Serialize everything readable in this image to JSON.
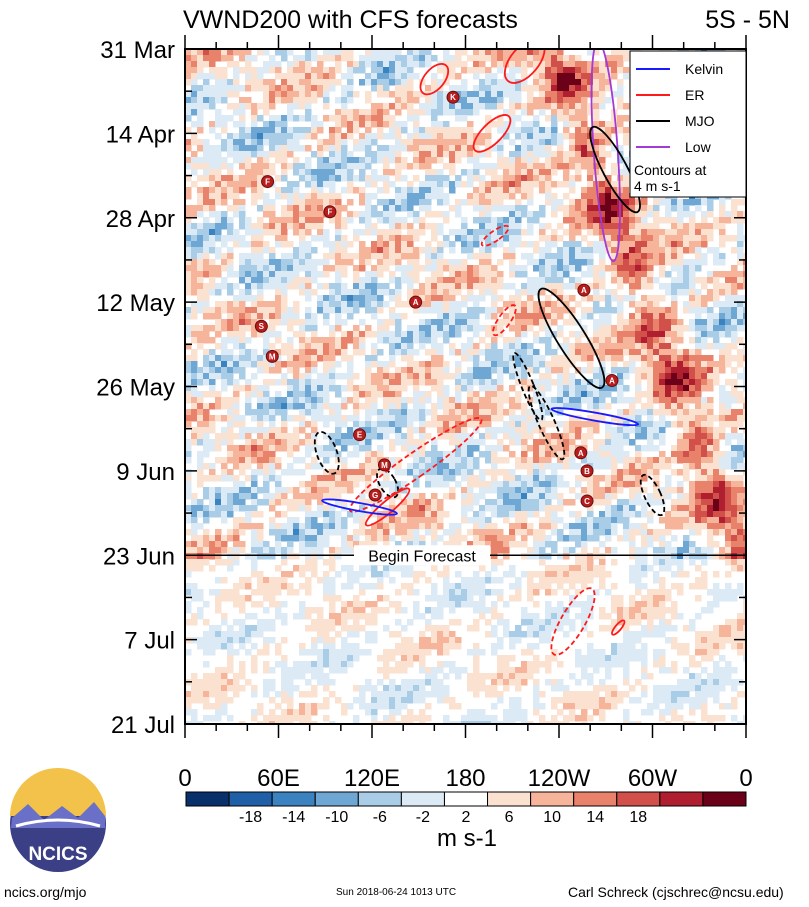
{
  "chart_data": {
    "type": "heatmap",
    "title": "VWND200 with CFS forecasts",
    "region": "5S - 5N",
    "y_tick_labels": [
      "31 Mar",
      "14 Apr",
      "28 Apr",
      "12 May",
      "26 May",
      "9 Jun",
      "23 Jun",
      "7 Jul",
      "21 Jul"
    ],
    "x_tick_labels": [
      "0",
      "60E",
      "120E",
      "180",
      "120W",
      "60W",
      "0"
    ],
    "x_ticks_deg": [
      0,
      60,
      120,
      180,
      240,
      300,
      360
    ],
    "y_range_days_from_top": [
      0,
      112
    ],
    "y_minor_tick_step_days": 7,
    "x_minor_tick_step_deg": 20,
    "forecast_start_day": 84,
    "forecast_label": "Begin Forecast",
    "colorbar": {
      "unit_label": "m s-1",
      "tick_labels": [
        "-18",
        "-14",
        "-10",
        "-6",
        "-2",
        "2",
        "6",
        "10",
        "14",
        "18"
      ],
      "colors": [
        "#08306b",
        "#1f5fa8",
        "#3a82c0",
        "#6ea7d3",
        "#a9cde6",
        "#dbeaf4",
        "#ffffff",
        "#fbe1d0",
        "#f6b59a",
        "#e8826a",
        "#d2504a",
        "#b01f2f",
        "#6b0019"
      ]
    },
    "legend": {
      "entries": [
        {
          "label": "Kelvin",
          "color": "#1a1aff"
        },
        {
          "label": "ER",
          "color": "#ff1a1a"
        },
        {
          "label": "MJO",
          "color": "#000000"
        },
        {
          "label": "Low",
          "color": "#a43ad6"
        }
      ],
      "note_line1": "Contours at",
      "note_line2": "4 m s-1",
      "placement": "top-right"
    },
    "storm_symbols": [
      {
        "letter": "F",
        "lon": 53,
        "day": 22
      },
      {
        "letter": "F",
        "lon": 93,
        "day": 27
      },
      {
        "letter": "K",
        "lon": 172,
        "day": 8
      },
      {
        "letter": "A",
        "lon": 148,
        "day": 42
      },
      {
        "letter": "S",
        "lon": 49,
        "day": 46
      },
      {
        "letter": "M",
        "lon": 56,
        "day": 51
      },
      {
        "letter": "E",
        "lon": 112,
        "day": 64
      },
      {
        "letter": "M",
        "lon": 128,
        "day": 69
      },
      {
        "letter": "G",
        "lon": 122,
        "day": 74
      },
      {
        "letter": "A",
        "lon": 256,
        "day": 40
      },
      {
        "letter": "A",
        "lon": 274,
        "day": 55
      },
      {
        "letter": "A",
        "lon": 254,
        "day": 67
      },
      {
        "letter": "B",
        "lon": 258,
        "day": 70
      },
      {
        "letter": "C",
        "lon": 258,
        "day": 75
      }
    ]
  },
  "footer": {
    "logo_text": "NCICS",
    "site": "ncics.org/mjo",
    "timestamp": "Sun 2018-06-24 1013 UTC",
    "author": "Carl Schreck (cjschrec@ncsu.edu)"
  }
}
